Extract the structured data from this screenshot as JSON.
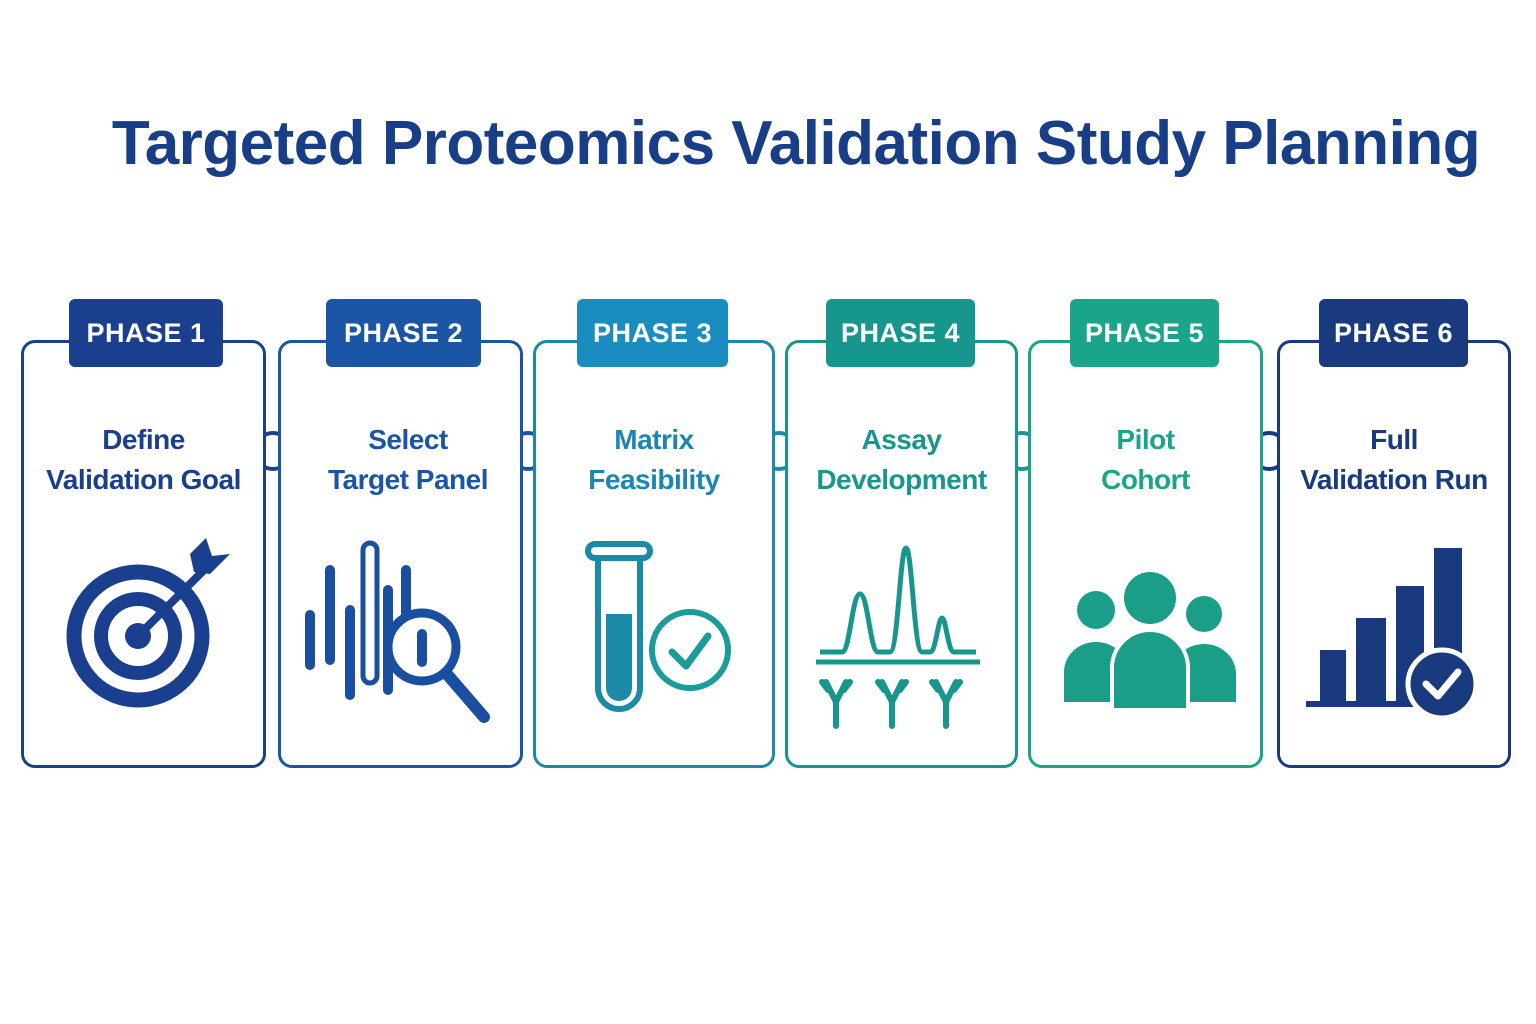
{
  "title": "Targeted Proteomics Validation Study Planning",
  "phases": [
    {
      "badge": "PHASE 1",
      "line1": "Define",
      "line2": "Validation Goal",
      "icon": "target-arrow-icon",
      "color": "#1b3f8f"
    },
    {
      "badge": "PHASE 2",
      "line1": "Select",
      "line2": "Target Panel",
      "icon": "magnifier-bars-icon",
      "color": "#1a56a5"
    },
    {
      "badge": "PHASE 3",
      "line1": "Matrix",
      "line2": "Feasibility",
      "icon": "test-tube-check-icon",
      "color": "#1a86b4"
    },
    {
      "badge": "PHASE 4",
      "line1": "Assay",
      "line2": "Development",
      "icon": "chromatogram-antibody-icon",
      "color": "#17968e"
    },
    {
      "badge": "PHASE 5",
      "line1": "Pilot",
      "line2": "Cohort",
      "icon": "people-group-icon",
      "color": "#1aa58a"
    },
    {
      "badge": "PHASE 6",
      "line1": "Full",
      "line2": "Validation Run",
      "icon": "bar-chart-check-icon",
      "color": "#1a3a80"
    }
  ]
}
